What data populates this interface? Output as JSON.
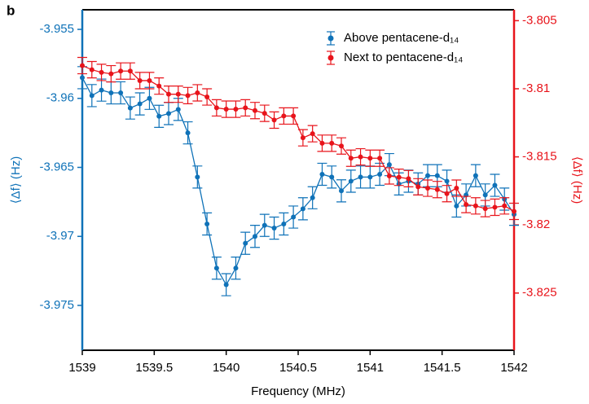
{
  "chart_data": {
    "type": "errorbar_line",
    "panel_label": "b",
    "xlabel": "Frequency (MHz)",
    "ylabel": "⟨Δf⟩ (Hz)",
    "y2label": "⟨Δf⟩ (Hz)",
    "xlim": [
      1539,
      1542
    ],
    "xticks": [
      1539,
      1539.5,
      1540,
      1540.5,
      1541,
      1541.5,
      1542
    ],
    "ylim": [
      -3.97825,
      -3.95358
    ],
    "yticks": [
      -3.955,
      -3.96,
      -3.965,
      -3.97,
      -3.975
    ],
    "y2lim": [
      -3.8292,
      -3.8042
    ],
    "y2ticks": [
      -3.805,
      -3.81,
      -3.815,
      -3.82,
      -3.825
    ],
    "yaxis_color": "#0f72b8",
    "y2axis_color": "#e8141b",
    "legend": "upper right",
    "x": [
      1539.0,
      1539.0667,
      1539.1333,
      1539.2,
      1539.2667,
      1539.3333,
      1539.4,
      1539.4667,
      1539.5333,
      1539.6,
      1539.6667,
      1539.7333,
      1539.8,
      1539.8667,
      1539.9333,
      1540.0,
      1540.0667,
      1540.1333,
      1540.2,
      1540.2667,
      1540.3333,
      1540.4,
      1540.4667,
      1540.5333,
      1540.6,
      1540.6667,
      1540.7333,
      1540.8,
      1540.8667,
      1540.9333,
      1541.0,
      1541.0667,
      1541.1333,
      1541.2,
      1541.2667,
      1541.3333,
      1541.4,
      1541.4667,
      1541.5333,
      1541.6,
      1541.6667,
      1541.7333,
      1541.8,
      1541.8667,
      1541.9333,
      1542.0
    ],
    "series": [
      {
        "name": "Above pentacene-d₁₄",
        "color": "#0f72b8",
        "axis": "y",
        "error": 0.0008,
        "values": [
          -3.9585,
          -3.9598,
          -3.9594,
          -3.9596,
          -3.9596,
          -3.9607,
          -3.9604,
          -3.96,
          -3.9613,
          -3.9611,
          -3.9608,
          -3.9625,
          -3.9657,
          -3.9691,
          -3.9723,
          -3.9735,
          -3.9723,
          -3.9705,
          -3.97,
          -3.9692,
          -3.9694,
          -3.9691,
          -3.9686,
          -3.968,
          -3.9672,
          -3.9655,
          -3.9657,
          -3.9667,
          -3.966,
          -3.9657,
          -3.9657,
          -3.9655,
          -3.9648,
          -3.9662,
          -3.966,
          -3.9662,
          -3.9656,
          -3.9656,
          -3.966,
          -3.9678,
          -3.967,
          -3.9656,
          -3.967,
          -3.9663,
          -3.9673,
          -3.9684
        ]
      },
      {
        "name": "Next to pentacene-d₁₄",
        "color": "#e8141b",
        "axis": "y2",
        "error": 0.0006,
        "values": [
          -3.8083,
          -3.8086,
          -3.8088,
          -3.8089,
          -3.8087,
          -3.8087,
          -3.8094,
          -3.8094,
          -3.8098,
          -3.8104,
          -3.8104,
          -3.8105,
          -3.8103,
          -3.8106,
          -3.8114,
          -3.8115,
          -3.8115,
          -3.8114,
          -3.8116,
          -3.8118,
          -3.8123,
          -3.812,
          -3.812,
          -3.8136,
          -3.8133,
          -3.814,
          -3.814,
          -3.8142,
          -3.8151,
          -3.815,
          -3.8151,
          -3.8151,
          -3.8164,
          -3.8165,
          -3.8166,
          -3.8172,
          -3.8173,
          -3.8174,
          -3.8177,
          -3.8173,
          -3.8185,
          -3.8186,
          -3.8188,
          -3.8187,
          -3.8186,
          -3.819
        ]
      }
    ]
  }
}
